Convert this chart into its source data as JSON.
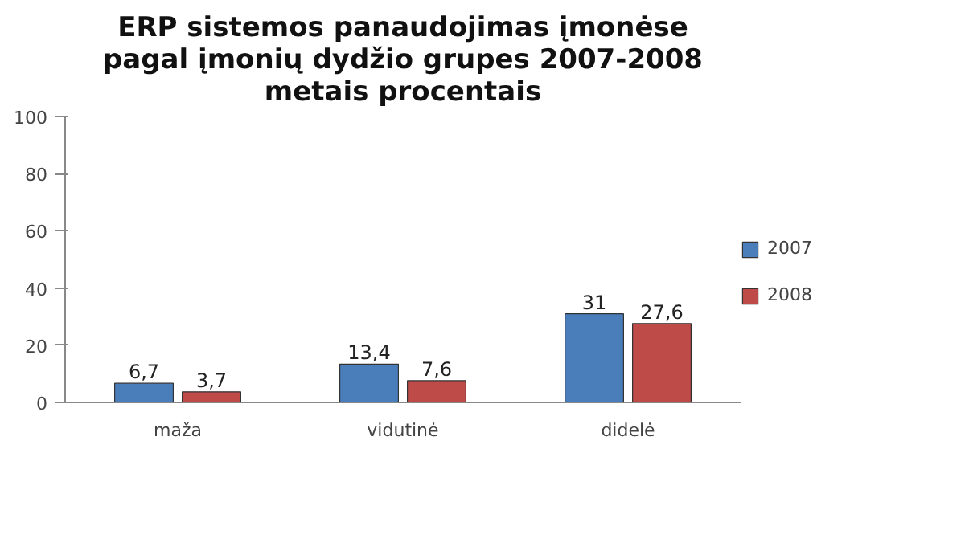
{
  "chart_data": {
    "type": "bar",
    "title": "ERP sistemos panaudojimas įmonėse pagal įmonių dydžio grupes 2007-2008 metais procentais",
    "categories": [
      "maža",
      "vidutinė",
      "didelė"
    ],
    "series": [
      {
        "name": "2007",
        "color": "#4a7ebb",
        "values": [
          6.7,
          13.4,
          31
        ],
        "value_labels": [
          "6,7",
          "13,4",
          "31"
        ]
      },
      {
        "name": "2008",
        "color": "#be4b48",
        "values": [
          3.7,
          7.6,
          27.6
        ],
        "value_labels": [
          "3,7",
          "7,6",
          "27,6"
        ]
      }
    ],
    "ylim": [
      0,
      100
    ],
    "yticks": [
      0,
      20,
      40,
      60,
      80,
      100
    ],
    "grid": false,
    "legend": "right"
  }
}
